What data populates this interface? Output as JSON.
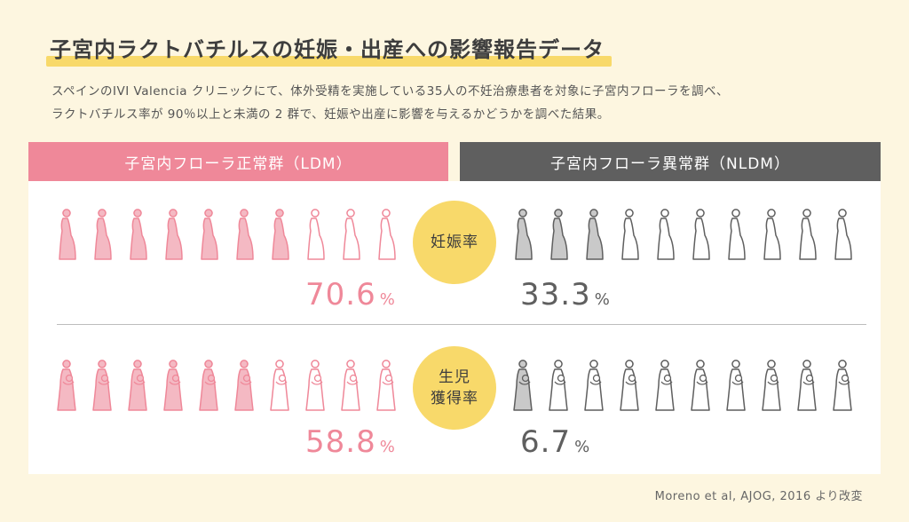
{
  "title": "子宮内ラクトバチルスの妊娠・出産への影響報告データ",
  "description": [
    "スペインのIVI Valencia クリニックにて、体外受精を実施している35人の不妊治療患者を対象に子宮内フローラを調べ、",
    "ラクトバチルス率が 90％以上と未満の 2 群で、妊娠や出産に影響を与えるかどうかを調べた結果。"
  ],
  "groups": {
    "ldm": "子宮内フローラ正常群（LDM）",
    "nldm": "子宮内フローラ異常群（NLDM）"
  },
  "metrics": {
    "pregnancy": {
      "label_lines": [
        "妊娠率"
      ],
      "ldm": "70.6",
      "nldm": "33.3"
    },
    "birth": {
      "label_lines": [
        "生児",
        "獲得率"
      ],
      "ldm": "58.8",
      "nldm": "6.7"
    },
    "unit": "%"
  },
  "source": "Moreno et al, AJOG, 2016 より改変",
  "colors": {
    "ldm": "#ef8899",
    "ldm_fill": "#f4b9c3",
    "nldm": "#5f5f5f",
    "nldm_fill": "#c9c9c9",
    "highlight": "#f8d96a",
    "background": "#fdf6e0"
  },
  "chart_data": {
    "type": "bar",
    "categories": [
      "妊娠率",
      "生児獲得率"
    ],
    "series": [
      {
        "name": "子宮内フローラ正常群（LDM）",
        "values": [
          70.6,
          58.8
        ]
      },
      {
        "name": "子宮内フローラ異常群（NLDM）",
        "values": [
          33.3,
          6.7
        ]
      }
    ],
    "unit": "%",
    "icons_per_group": 10,
    "icon_fill_fraction": {
      "ldm": [
        0.7,
        0.6
      ],
      "nldm": [
        0.3,
        0.05
      ]
    },
    "title": "子宮内ラクトバチルスの妊娠・出産への影響報告データ"
  }
}
